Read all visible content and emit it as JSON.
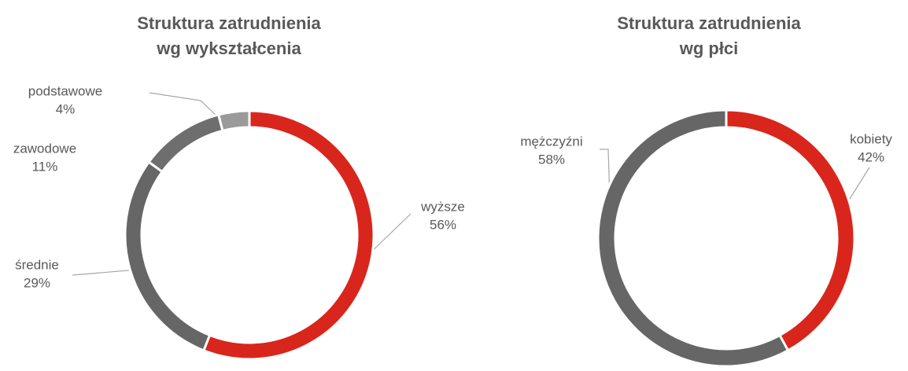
{
  "chart_data": [
    {
      "type": "donut",
      "title": "Struktura zatrudnienia wg wykształcenia",
      "categories": [
        "wyższe",
        "średnie",
        "zawodowe",
        "podstawowe"
      ],
      "values": [
        56,
        29,
        11,
        4
      ],
      "value_labels": [
        "56%",
        "29%",
        "11%",
        "4%"
      ],
      "colors": [
        "#d9261c",
        "#666666",
        "#6e6e6e",
        "#9a9a9a"
      ]
    },
    {
      "type": "donut",
      "title": "Struktura zatrudnienia wg płci",
      "categories": [
        "kobiety",
        "mężczyźni"
      ],
      "values": [
        42,
        58
      ],
      "value_labels": [
        "42%",
        "58%"
      ],
      "colors": [
        "#d9261c",
        "#666666"
      ]
    }
  ]
}
